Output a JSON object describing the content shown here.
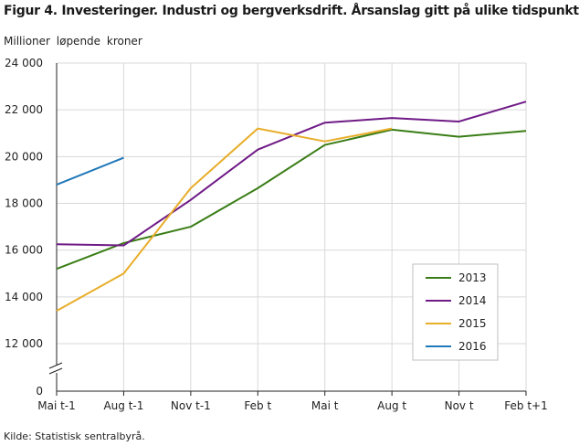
{
  "chart_data": {
    "type": "line",
    "title": "Figur 4. Investeringer. Industri og bergverksdrift. Årsanslag gitt på ulike tidspunkt",
    "ylabel": "Millioner løpende kroner",
    "xlabel": "",
    "source": "Kilde: Statistisk sentralbyrå.",
    "categories": [
      "Mai t-1",
      "Aug t-1",
      "Nov t-1",
      "Feb t",
      "Mai t",
      "Aug t",
      "Nov t",
      "Feb t+1"
    ],
    "y_ticks": [
      0,
      12000,
      14000,
      16000,
      18000,
      20000,
      22000,
      24000
    ],
    "y_tick_labels": [
      "0",
      "12 000",
      "14 000",
      "16 000",
      "18 000",
      "20 000",
      "22 000",
      "24 000"
    ],
    "ylim": [
      10000,
      24000
    ],
    "axis_break": true,
    "grid": true,
    "legend_position": "bottom-right",
    "series": [
      {
        "name": "2013",
        "color": "#3a7d16",
        "values": [
          15200,
          16300,
          17000,
          18650,
          20500,
          21150,
          20850,
          21100
        ]
      },
      {
        "name": "2014",
        "color": "#6f1a86",
        "values": [
          16250,
          16200,
          18150,
          20300,
          21450,
          21650,
          21500,
          22350
        ]
      },
      {
        "name": "2015",
        "color": "#e8ad2a",
        "values": [
          13400,
          15000,
          18650,
          21200,
          20650,
          21200,
          null,
          null
        ]
      },
      {
        "name": "2016",
        "color": "#1f78b9",
        "values": [
          18800,
          19950,
          null,
          null,
          null,
          null,
          null,
          null
        ]
      }
    ]
  }
}
